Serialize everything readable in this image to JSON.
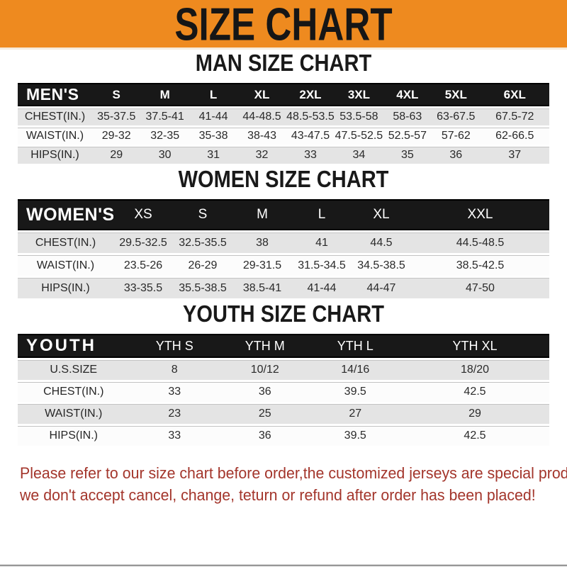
{
  "banner": {
    "title": "SIZE CHART"
  },
  "sections": [
    {
      "heading": "MAN SIZE CHART",
      "header_label": "MEN'S",
      "columns": [
        "S",
        "M",
        "L",
        "XL",
        "2XL",
        "3XL",
        "4XL",
        "5XL",
        "6XL"
      ],
      "rows": [
        {
          "label": "CHEST(IN.)",
          "values": [
            "35-37.5",
            "37.5-41",
            "41-44",
            "44-48.5",
            "48.5-53.5",
            "53.5-58",
            "58-63",
            "63-67.5",
            "67.5-72"
          ]
        },
        {
          "label": "WAIST(IN.)",
          "values": [
            "29-32",
            "32-35",
            "35-38",
            "38-43",
            "43-47.5",
            "47.5-52.5",
            "52.5-57",
            "57-62",
            "62-66.5"
          ]
        },
        {
          "label": "HIPS(IN.)",
          "values": [
            "29",
            "30",
            "31",
            "32",
            "33",
            "34",
            "35",
            "36",
            "37"
          ]
        }
      ]
    },
    {
      "heading": "WOMEN SIZE CHART",
      "header_label": "WOMEN'S",
      "columns": [
        "XS",
        "S",
        "M",
        "L",
        "XL",
        "XXL"
      ],
      "rows": [
        {
          "label": "CHEST(IN.)",
          "values": [
            "29.5-32.5",
            "32.5-35.5",
            "38",
            "41",
            "44.5",
            "44.5-48.5"
          ]
        },
        {
          "label": "WAIST(IN.)",
          "values": [
            "23.5-26",
            "26-29",
            "29-31.5",
            "31.5-34.5",
            "34.5-38.5",
            "38.5-42.5"
          ]
        },
        {
          "label": "HIPS(IN.)",
          "values": [
            "33-35.5",
            "35.5-38.5",
            "38.5-41",
            "41-44",
            "44-47",
            "47-50"
          ]
        }
      ]
    },
    {
      "heading": "YOUTH SIZE CHART",
      "header_label": "YOUTH",
      "columns": [
        "YTH S",
        "YTH M",
        "YTH L",
        "YTH XL"
      ],
      "rows": [
        {
          "label": "U.S.SIZE",
          "values": [
            "8",
            "10/12",
            "14/16",
            "18/20"
          ]
        },
        {
          "label": "CHEST(IN.)",
          "values": [
            "33",
            "36",
            "39.5",
            "42.5"
          ]
        },
        {
          "label": "WAIST(IN.)",
          "values": [
            "23",
            "25",
            "27",
            "29"
          ]
        },
        {
          "label": "HIPS(IN.)",
          "values": [
            "33",
            "36",
            "39.5",
            "42.5"
          ]
        }
      ]
    }
  ],
  "footer": {
    "line1": "Please refer to our size chart before order,the customized jerseys are special products,",
    "line2": "we don't accept cancel, change, teturn or refund after order has been placed!"
  },
  "colors": {
    "banner_bg": "#EE8A1F",
    "header_bar_bg": "#181818",
    "row_alt_bg": "#E4E4E4",
    "footer_text": "#A3352B"
  }
}
